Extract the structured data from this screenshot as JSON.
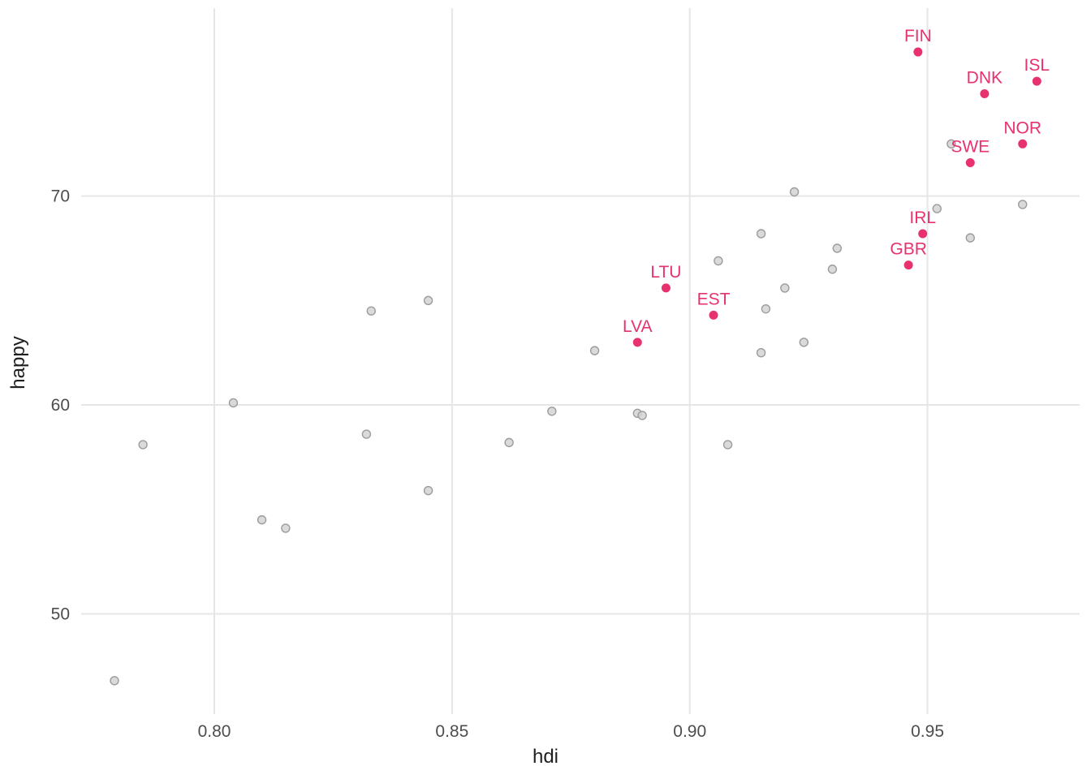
{
  "chart_data": {
    "type": "scatter",
    "title": "",
    "xlabel": "hdi",
    "ylabel": "happy",
    "xlim": [
      0.772,
      0.982
    ],
    "ylim": [
      45.2,
      79.0
    ],
    "x_ticks": [
      0.8,
      0.85,
      0.9,
      0.95
    ],
    "x_tick_labels": [
      "0.80",
      "0.85",
      "0.90",
      "0.95"
    ],
    "y_ticks": [
      50,
      60,
      70
    ],
    "y_tick_labels": [
      "50",
      "60",
      "70"
    ],
    "grid": true,
    "legend": false,
    "colors": {
      "highlight": "#e8316f",
      "background_point_fill": "#d3d3d3",
      "background_point_stroke": "#9c9c9c",
      "gridline": "#e6e6e6",
      "tick_text": "#4d4d4d",
      "axis_title_text": "#1f1f1f",
      "panel_background": "#ffffff"
    },
    "series": [
      {
        "name": "other-countries",
        "role": "background",
        "points": [
          {
            "hdi": 0.779,
            "happy": 46.8
          },
          {
            "hdi": 0.785,
            "happy": 58.1
          },
          {
            "hdi": 0.804,
            "happy": 60.1
          },
          {
            "hdi": 0.81,
            "happy": 54.5
          },
          {
            "hdi": 0.815,
            "happy": 54.1
          },
          {
            "hdi": 0.832,
            "happy": 58.6
          },
          {
            "hdi": 0.833,
            "happy": 64.5
          },
          {
            "hdi": 0.845,
            "happy": 55.9
          },
          {
            "hdi": 0.845,
            "happy": 65.0
          },
          {
            "hdi": 0.862,
            "happy": 58.2
          },
          {
            "hdi": 0.871,
            "happy": 59.7
          },
          {
            "hdi": 0.88,
            "happy": 62.6
          },
          {
            "hdi": 0.889,
            "happy": 59.6
          },
          {
            "hdi": 0.89,
            "happy": 59.5
          },
          {
            "hdi": 0.906,
            "happy": 66.9
          },
          {
            "hdi": 0.908,
            "happy": 58.1
          },
          {
            "hdi": 0.915,
            "happy": 68.2
          },
          {
            "hdi": 0.915,
            "happy": 62.5
          },
          {
            "hdi": 0.916,
            "happy": 64.6
          },
          {
            "hdi": 0.92,
            "happy": 65.6
          },
          {
            "hdi": 0.922,
            "happy": 70.2
          },
          {
            "hdi": 0.924,
            "happy": 63.0
          },
          {
            "hdi": 0.93,
            "happy": 66.5
          },
          {
            "hdi": 0.931,
            "happy": 67.5
          },
          {
            "hdi": 0.952,
            "happy": 69.4
          },
          {
            "hdi": 0.955,
            "happy": 72.5
          },
          {
            "hdi": 0.959,
            "happy": 68.0
          },
          {
            "hdi": 0.97,
            "happy": 69.6
          }
        ]
      },
      {
        "name": "highlighted-countries",
        "role": "highlight",
        "points": [
          {
            "label": "FIN",
            "hdi": 0.948,
            "happy": 76.9
          },
          {
            "label": "ISL",
            "hdi": 0.973,
            "happy": 75.5
          },
          {
            "label": "DNK",
            "hdi": 0.962,
            "happy": 74.9
          },
          {
            "label": "NOR",
            "hdi": 0.97,
            "happy": 72.5
          },
          {
            "label": "SWE",
            "hdi": 0.959,
            "happy": 71.6
          },
          {
            "label": "IRL",
            "hdi": 0.949,
            "happy": 68.2
          },
          {
            "label": "GBR",
            "hdi": 0.946,
            "happy": 66.7
          },
          {
            "label": "LTU",
            "hdi": 0.895,
            "happy": 65.6
          },
          {
            "label": "EST",
            "hdi": 0.905,
            "happy": 64.3
          },
          {
            "label": "LVA",
            "hdi": 0.889,
            "happy": 63.0
          }
        ]
      }
    ]
  }
}
